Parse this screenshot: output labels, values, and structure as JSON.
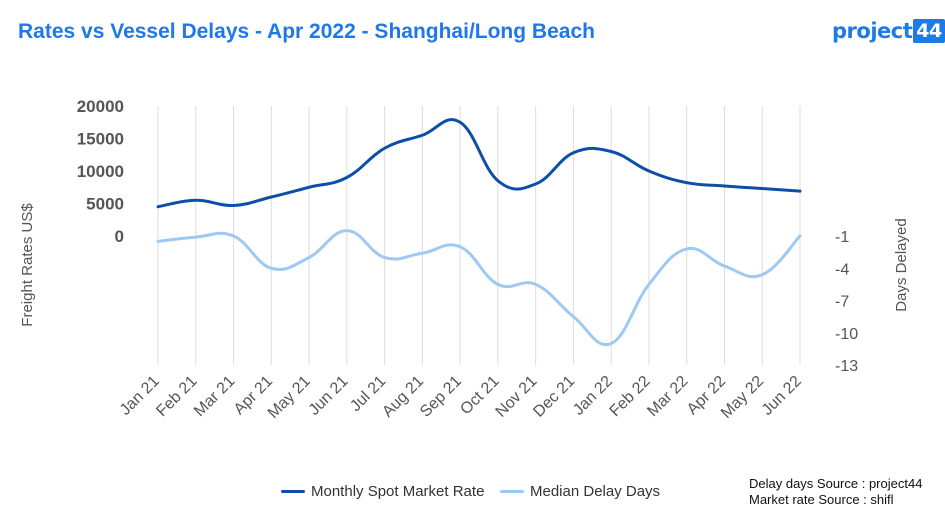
{
  "header": {
    "title": "Rates vs Vessel Delays - Apr 2022 - Shanghai/Long Beach",
    "logo_text": "project",
    "logo_number": "44"
  },
  "colors": {
    "rate_line": "#0D4FA8",
    "delay_line": "#9EC9F3",
    "title": "#1F78E8",
    "grid": "#DDDDDD"
  },
  "chart_data": {
    "type": "line",
    "categories": [
      "Jan 21",
      "Feb 21",
      "Mar 21",
      "Apr 21",
      "May 21",
      "Jun 21",
      "Jul 21",
      "Aug 21",
      "Sep 21",
      "Oct 21",
      "Nov 21",
      "Dec 21",
      "Jan 22",
      "Feb 22",
      "Mar 22",
      "Apr 22",
      "May 22",
      "Jun 22"
    ],
    "series": [
      {
        "name": "Monthly Spot Market Rate",
        "axis": "left",
        "values": [
          4500,
          5500,
          4700,
          6000,
          7500,
          9000,
          13500,
          15500,
          17500,
          8500,
          8000,
          12800,
          13000,
          10000,
          8200,
          7700,
          7300,
          6900
        ]
      },
      {
        "name": "Median Delay Days",
        "axis": "right",
        "values": [
          -1.5,
          -1.1,
          -1.0,
          -4.0,
          -3.0,
          -0.5,
          -3.0,
          -2.6,
          -2.0,
          -5.5,
          -5.5,
          -8.5,
          -11.0,
          -5.5,
          -2.2,
          -3.8,
          -4.6,
          -1.0
        ]
      }
    ],
    "y_left": {
      "label": "Freight Rates US$",
      "ticks": [
        0,
        5000,
        10000,
        15000,
        20000
      ],
      "range": [
        0,
        20000
      ]
    },
    "y_right": {
      "label": "Days Delayed",
      "ticks": [
        -1,
        -4,
        -7,
        -10,
        -13
      ],
      "range": [
        -1,
        -13
      ]
    },
    "grid": "vertical",
    "legend": "bottom-center"
  },
  "sources": {
    "delay": "Delay days Source : project44",
    "rate": "Market rate Source : shifl"
  }
}
